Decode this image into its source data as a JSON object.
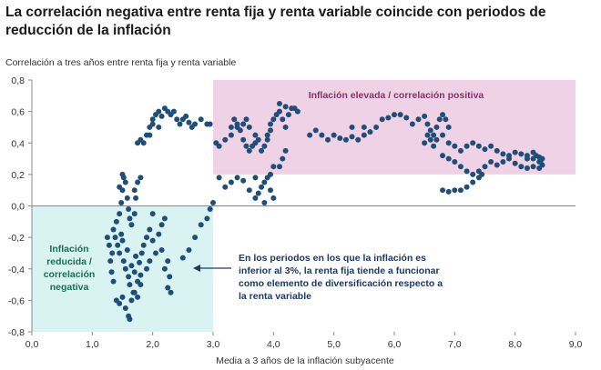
{
  "title": "La correlación negativa entre renta fija y renta variable coincide con periodos de reducción de la inflación",
  "colors": {
    "dots": "#1f4e79",
    "region_high": "#f0d2e6",
    "region_low": "#d8f3f1",
    "arrow": "#1f3864"
  },
  "chart_data": {
    "type": "scatter",
    "title": "La correlación negativa entre renta fija y renta variable coincide con periodos de reducción de la inflación",
    "xlabel": "Media a 3 años de la inflación subyacente",
    "ylabel": "Correlación a tres años entre renta fija y renta variable",
    "xlim": [
      0,
      9
    ],
    "ylim": [
      -0.8,
      0.8
    ],
    "xticks": [
      "0,0",
      "1,0",
      "2,0",
      "3,0",
      "4,0",
      "5,0",
      "6,0",
      "7,0",
      "8,0",
      "9,0"
    ],
    "yticks": [
      "0,8",
      "0,6",
      "0,4",
      "0,2",
      "0,0",
      "-0,2",
      "-0,4",
      "-0,6",
      "-0,8"
    ],
    "grid": false,
    "regions": [
      {
        "label": "Inflación elevada / correlación positiva",
        "x": [
          3.0,
          9.0
        ],
        "y": [
          0.2,
          0.8
        ],
        "color": "#f0d2e6"
      },
      {
        "label": "Inflación reducida / correlación negativa",
        "x": [
          0.0,
          3.0
        ],
        "y": [
          -0.8,
          0.0
        ],
        "color": "#d8f3f1"
      }
    ],
    "annotation": "En los periodos en los que la inflación es inferior al 3%, la renta fija tiende a funcionar como elemento de diversificación respecto a la renta variable",
    "series": [
      {
        "values": [
          [
            1.35,
            -0.15
          ],
          [
            1.38,
            -0.2
          ],
          [
            1.4,
            -0.1
          ],
          [
            1.42,
            -0.25
          ],
          [
            1.45,
            -0.3
          ],
          [
            1.48,
            -0.18
          ],
          [
            1.5,
            -0.22
          ],
          [
            1.52,
            -0.35
          ],
          [
            1.55,
            -0.4
          ],
          [
            1.58,
            -0.28
          ],
          [
            1.6,
            -0.45
          ],
          [
            1.62,
            -0.5
          ],
          [
            1.65,
            -0.38
          ],
          [
            1.68,
            -0.55
          ],
          [
            1.7,
            -0.42
          ],
          [
            1.72,
            -0.32
          ],
          [
            1.75,
            -0.48
          ],
          [
            1.78,
            -0.36
          ],
          [
            1.8,
            -0.44
          ],
          [
            1.82,
            -0.3
          ],
          [
            1.45,
            -0.05
          ],
          [
            1.48,
            0.02
          ],
          [
            1.5,
            0.1
          ],
          [
            1.52,
            0.18
          ],
          [
            1.55,
            0.15
          ],
          [
            1.58,
            0.05
          ],
          [
            1.6,
            -0.02
          ],
          [
            1.62,
            -0.08
          ],
          [
            1.65,
            -0.12
          ],
          [
            1.7,
            -0.05
          ],
          [
            1.4,
            -0.6
          ],
          [
            1.45,
            -0.62
          ],
          [
            1.5,
            -0.58
          ],
          [
            1.55,
            -0.65
          ],
          [
            1.6,
            -0.7
          ],
          [
            1.62,
            -0.72
          ],
          [
            1.65,
            -0.6
          ],
          [
            1.7,
            -0.55
          ],
          [
            1.75,
            -0.58
          ],
          [
            1.8,
            -0.5
          ],
          [
            1.85,
            -0.25
          ],
          [
            1.9,
            -0.2
          ],
          [
            1.95,
            -0.15
          ],
          [
            2.0,
            -0.22
          ],
          [
            2.05,
            -0.3
          ],
          [
            2.1,
            -0.18
          ],
          [
            2.15,
            -0.12
          ],
          [
            2.2,
            -0.08
          ],
          [
            2.25,
            -0.35
          ],
          [
            2.28,
            -0.45
          ],
          [
            2.3,
            -0.55
          ],
          [
            2.25,
            -0.52
          ],
          [
            2.2,
            -0.4
          ],
          [
            2.15,
            -0.28
          ],
          [
            1.3,
            -0.35
          ],
          [
            1.32,
            -0.42
          ],
          [
            1.35,
            -0.48
          ],
          [
            1.33,
            -0.3
          ],
          [
            1.28,
            -0.25
          ],
          [
            1.25,
            -0.2
          ],
          [
            2.5,
            -0.33
          ],
          [
            2.6,
            -0.28
          ],
          [
            2.7,
            -0.2
          ],
          [
            2.8,
            -0.12
          ],
          [
            2.9,
            -0.08
          ],
          [
            2.95,
            -0.02
          ],
          [
            3.0,
            0.02
          ],
          [
            2.0,
            -0.05
          ],
          [
            1.95,
            -0.35
          ],
          [
            1.9,
            -0.4
          ],
          [
            1.7,
            0.1
          ],
          [
            1.75,
            0.15
          ],
          [
            1.8,
            0.18
          ],
          [
            1.72,
            0.05
          ],
          [
            1.5,
            0.2
          ],
          [
            1.45,
            0.12
          ],
          [
            1.75,
            0.4
          ],
          [
            1.8,
            0.42
          ],
          [
            1.85,
            0.4
          ],
          [
            1.9,
            0.45
          ],
          [
            1.95,
            0.5
          ],
          [
            2.0,
            0.55
          ],
          [
            2.05,
            0.58
          ],
          [
            2.1,
            0.6
          ],
          [
            2.15,
            0.57
          ],
          [
            2.2,
            0.62
          ],
          [
            2.25,
            0.6
          ],
          [
            2.3,
            0.58
          ],
          [
            2.35,
            0.6
          ],
          [
            2.4,
            0.55
          ],
          [
            2.45,
            0.52
          ],
          [
            2.5,
            0.55
          ],
          [
            2.55,
            0.57
          ],
          [
            2.6,
            0.53
          ],
          [
            2.65,
            0.5
          ],
          [
            2.7,
            0.52
          ],
          [
            2.8,
            0.55
          ],
          [
            2.9,
            0.52
          ],
          [
            2.95,
            0.52
          ],
          [
            1.95,
            0.45
          ],
          [
            2.0,
            0.52
          ],
          [
            2.1,
            0.5
          ],
          [
            3.05,
            0.4
          ],
          [
            3.1,
            0.38
          ],
          [
            3.2,
            0.42
          ],
          [
            3.3,
            0.45
          ],
          [
            3.4,
            0.5
          ],
          [
            3.5,
            0.52
          ],
          [
            3.55,
            0.55
          ],
          [
            3.6,
            0.5
          ],
          [
            3.7,
            0.45
          ],
          [
            3.75,
            0.42
          ],
          [
            3.3,
            0.5
          ],
          [
            3.35,
            0.55
          ],
          [
            3.4,
            0.52
          ],
          [
            3.45,
            0.48
          ],
          [
            3.5,
            0.42
          ],
          [
            3.55,
            0.38
          ],
          [
            3.6,
            0.35
          ],
          [
            3.65,
            0.38
          ],
          [
            3.7,
            0.4
          ],
          [
            3.8,
            0.35
          ],
          [
            3.85,
            0.38
          ],
          [
            3.9,
            0.45
          ],
          [
            3.95,
            0.52
          ],
          [
            4.0,
            0.55
          ],
          [
            4.05,
            0.58
          ],
          [
            4.1,
            0.6
          ],
          [
            4.15,
            0.55
          ],
          [
            4.2,
            0.5
          ],
          [
            4.25,
            0.58
          ],
          [
            4.3,
            0.62
          ],
          [
            4.35,
            0.62
          ],
          [
            4.4,
            0.6
          ],
          [
            4.1,
            0.65
          ],
          [
            4.2,
            0.63
          ],
          [
            3.95,
            0.48
          ],
          [
            3.9,
            0.42
          ],
          [
            3.1,
            0.18
          ],
          [
            3.2,
            0.12
          ],
          [
            3.3,
            0.15
          ],
          [
            3.4,
            0.18
          ],
          [
            3.5,
            0.16
          ],
          [
            3.6,
            0.1
          ],
          [
            3.7,
            0.05
          ],
          [
            3.75,
            0.08
          ],
          [
            3.8,
            0.12
          ],
          [
            3.85,
            0.15
          ],
          [
            3.9,
            0.18
          ],
          [
            3.95,
            0.1
          ],
          [
            4.0,
            0.05
          ],
          [
            3.85,
            0.02
          ],
          [
            3.95,
            0.2
          ],
          [
            4.0,
            0.25
          ],
          [
            4.1,
            0.25
          ],
          [
            4.15,
            0.3
          ],
          [
            4.2,
            0.35
          ],
          [
            3.7,
            0.18
          ],
          [
            4.6,
            0.45
          ],
          [
            4.7,
            0.48
          ],
          [
            4.8,
            0.45
          ],
          [
            4.9,
            0.42
          ],
          [
            5.0,
            0.45
          ],
          [
            5.1,
            0.43
          ],
          [
            5.2,
            0.42
          ],
          [
            5.3,
            0.44
          ],
          [
            5.4,
            0.42
          ],
          [
            5.5,
            0.45
          ],
          [
            5.6,
            0.47
          ],
          [
            5.7,
            0.5
          ],
          [
            5.8,
            0.55
          ],
          [
            5.9,
            0.56
          ],
          [
            6.0,
            0.58
          ],
          [
            6.1,
            0.58
          ],
          [
            6.2,
            0.56
          ],
          [
            6.3,
            0.52
          ],
          [
            6.4,
            0.55
          ],
          [
            6.5,
            0.57
          ],
          [
            6.55,
            0.52
          ],
          [
            6.6,
            0.48
          ],
          [
            6.65,
            0.45
          ],
          [
            6.7,
            0.5
          ],
          [
            6.75,
            0.55
          ],
          [
            6.8,
            0.58
          ],
          [
            6.85,
            0.55
          ],
          [
            6.9,
            0.5
          ],
          [
            6.5,
            0.4
          ],
          [
            6.55,
            0.45
          ],
          [
            6.6,
            0.42
          ],
          [
            6.65,
            0.38
          ],
          [
            6.7,
            0.42
          ],
          [
            6.8,
            0.45
          ],
          [
            6.9,
            0.4
          ],
          [
            7.0,
            0.38
          ],
          [
            7.1,
            0.35
          ],
          [
            7.2,
            0.38
          ],
          [
            7.3,
            0.4
          ],
          [
            7.4,
            0.38
          ],
          [
            7.5,
            0.36
          ],
          [
            7.6,
            0.38
          ],
          [
            7.7,
            0.35
          ],
          [
            7.8,
            0.33
          ],
          [
            7.9,
            0.32
          ],
          [
            8.0,
            0.34
          ],
          [
            8.1,
            0.33
          ],
          [
            8.2,
            0.32
          ],
          [
            8.3,
            0.3
          ],
          [
            8.4,
            0.28
          ],
          [
            8.45,
            0.26
          ],
          [
            8.4,
            0.24
          ],
          [
            8.3,
            0.25
          ],
          [
            8.2,
            0.24
          ],
          [
            8.1,
            0.25
          ],
          [
            8.0,
            0.27
          ],
          [
            7.9,
            0.3
          ],
          [
            7.8,
            0.28
          ],
          [
            7.7,
            0.26
          ],
          [
            7.6,
            0.28
          ],
          [
            7.5,
            0.25
          ],
          [
            7.4,
            0.22
          ],
          [
            7.3,
            0.2
          ],
          [
            7.2,
            0.22
          ],
          [
            7.1,
            0.25
          ],
          [
            7.0,
            0.28
          ],
          [
            6.9,
            0.3
          ],
          [
            6.8,
            0.32
          ],
          [
            8.2,
            0.3
          ],
          [
            8.3,
            0.34
          ],
          [
            8.35,
            0.32
          ],
          [
            8.45,
            0.3
          ],
          [
            8.42,
            0.28
          ],
          [
            8.4,
            0.31
          ],
          [
            6.8,
            0.1
          ],
          [
            6.9,
            0.09
          ],
          [
            7.0,
            0.1
          ],
          [
            7.1,
            0.1
          ],
          [
            7.2,
            0.12
          ],
          [
            7.3,
            0.15
          ],
          [
            7.4,
            0.18
          ],
          [
            7.45,
            0.2
          ],
          [
            5.5,
            0.5
          ],
          [
            5.3,
            0.5
          ]
        ]
      }
    ]
  }
}
